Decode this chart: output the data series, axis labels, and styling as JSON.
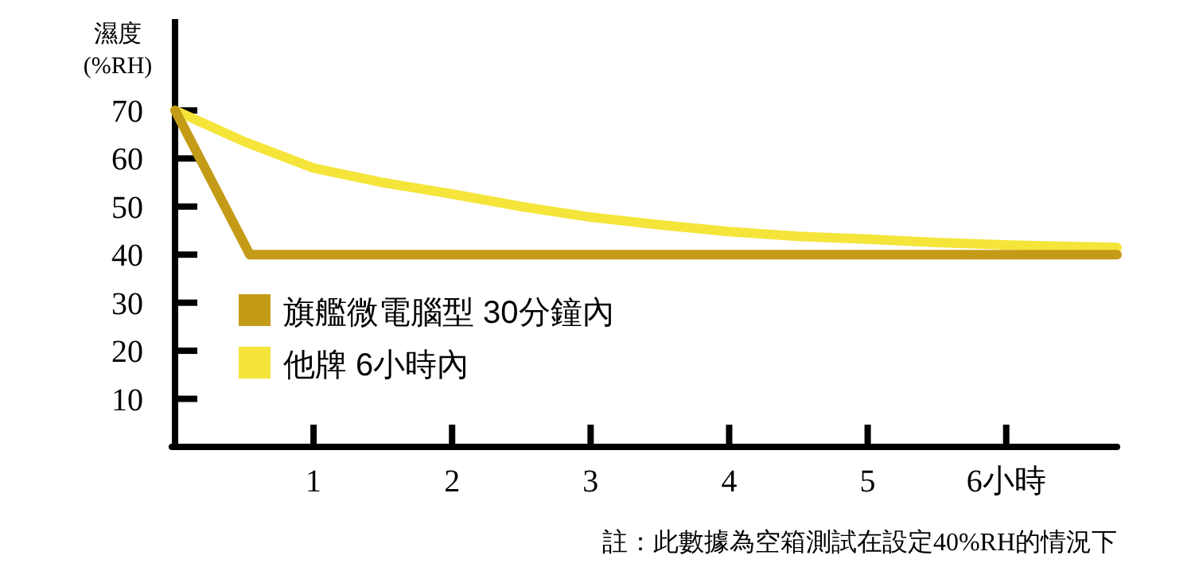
{
  "chart_data": {
    "type": "line",
    "ylabel": "濕度\n(%RH)",
    "annotations": [
      "註：此數據為空箱測試在設定40%RH的情況下"
    ],
    "xlim": [
      0,
      6.8
    ],
    "ylim": [
      0,
      89
    ],
    "xticks": [
      1,
      2,
      3,
      4,
      5,
      {
        "value": 6,
        "label": "6小時"
      }
    ],
    "yticks": [
      10,
      20,
      30,
      40,
      50,
      60,
      70
    ],
    "legend": "left",
    "grid": false,
    "series": [
      {
        "name": "旗艦微電腦型 30分鐘內",
        "color": "#c49b16",
        "x": [
          0,
          0.54,
          6.8
        ],
        "values": [
          70,
          40,
          40
        ]
      },
      {
        "name": "他牌 6小時內",
        "color": "#f5e53a",
        "x": [
          0,
          0.5,
          1,
          1.5,
          2,
          2.5,
          3,
          3.5,
          4,
          4.5,
          5,
          5.5,
          6,
          6.8
        ],
        "values": [
          70,
          63.5,
          58,
          55,
          52.6,
          50,
          47.8,
          46.2,
          44.8,
          43.8,
          43.2,
          42.5,
          42,
          41.5
        ]
      }
    ]
  }
}
